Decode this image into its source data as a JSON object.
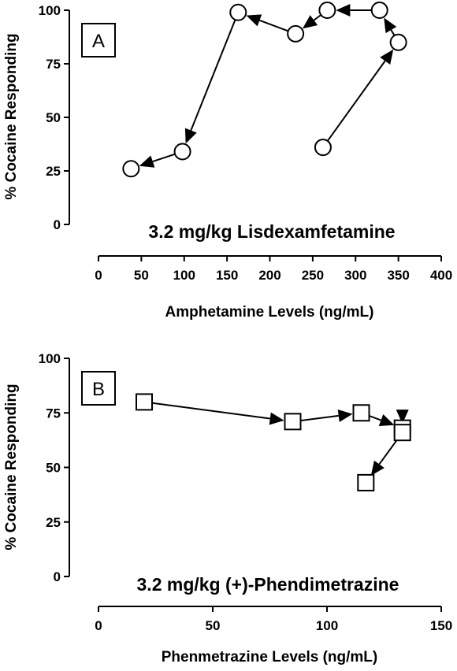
{
  "chart_data": [
    {
      "type": "line",
      "panel_label": "A",
      "annotation": "3.2 mg/kg Lisdexamfetamine",
      "xlabel": "Amphetamine Levels (ng/mL)",
      "ylabel": "% Cocaine Responding",
      "xlim": [
        0,
        400
      ],
      "ylim": [
        0,
        100
      ],
      "xticks": [
        0,
        50,
        100,
        150,
        200,
        250,
        300,
        350,
        400
      ],
      "yticks": [
        0,
        25,
        50,
        75,
        100
      ],
      "marker": "circle",
      "marker_fill": "#ffffff",
      "line_color": "#000000",
      "arrows": true,
      "x": [
        262,
        350,
        328,
        267,
        230,
        163,
        98,
        38
      ],
      "y": [
        36,
        85,
        100,
        100,
        89,
        99,
        34,
        26
      ]
    },
    {
      "type": "line",
      "panel_label": "B",
      "annotation": "3.2 mg/kg (+)-Phendimetrazine",
      "xlabel": "Phenmetrazine Levels (ng/mL)",
      "ylabel": "% Cocaine Responding",
      "xlim": [
        0,
        150
      ],
      "ylim": [
        0,
        100
      ],
      "xticks": [
        0,
        50,
        100,
        150
      ],
      "yticks": [
        0,
        25,
        50,
        75,
        100
      ],
      "marker": "square",
      "marker_fill": "#ffffff",
      "line_color": "#000000",
      "arrows": true,
      "x": [
        20,
        85,
        115,
        133,
        133,
        117
      ],
      "y": [
        80,
        71,
        75,
        68,
        66,
        43
      ]
    }
  ]
}
